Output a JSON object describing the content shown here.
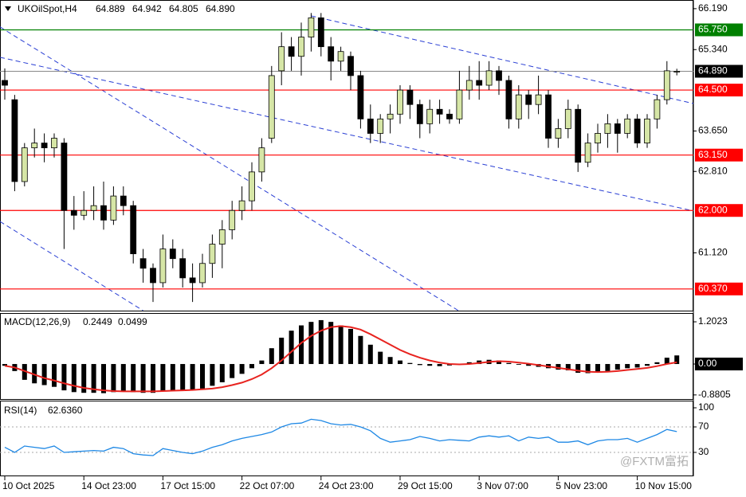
{
  "chart_data": [
    {
      "type": "candlestick",
      "symbol": "UKOilSpot,H4",
      "header_labels": [
        "64.889",
        "64.942",
        "64.805",
        "64.890"
      ],
      "categories": [
        "10 Oct 2025",
        null,
        null,
        null,
        null,
        null,
        null,
        null,
        "14 Oct 23:00",
        null,
        null,
        null,
        null,
        null,
        null,
        null,
        "17 Oct 15:00",
        null,
        null,
        null,
        null,
        null,
        null,
        null,
        "22 Oct 07:00",
        null,
        null,
        null,
        null,
        null,
        null,
        null,
        "24 Oct 23:00",
        null,
        null,
        null,
        null,
        null,
        null,
        null,
        "29 Oct 15:00",
        null,
        null,
        null,
        null,
        null,
        null,
        null,
        "3 Nov 07:00",
        null,
        null,
        null,
        null,
        null,
        null,
        null,
        "5 Nov 23:00",
        null,
        null,
        null,
        null,
        null,
        null,
        null,
        "10 Nov 15:00",
        null,
        null,
        null,
        null
      ],
      "open": [
        64.7,
        64.3,
        62.6,
        63.3,
        63.4,
        63.3,
        63.4,
        62.0,
        61.9,
        62.0,
        62.1,
        61.8,
        62.3,
        62.1,
        61.0,
        60.8,
        60.5,
        61.2,
        61.0,
        60.6,
        60.5,
        60.9,
        61.3,
        61.6,
        62.0,
        62.2,
        62.8,
        63.5,
        64.9,
        65.4,
        65.2,
        65.6,
        66.0,
        65.4,
        65.1,
        65.2,
        64.8,
        63.9,
        63.6,
        63.9,
        64.0,
        64.5,
        64.2,
        63.8,
        64.1,
        64.0,
        63.9,
        64.5,
        64.7,
        64.6,
        64.9,
        64.7,
        63.9,
        64.4,
        64.2,
        64.4,
        63.5,
        63.7,
        64.1,
        63.0,
        63.4,
        63.6,
        63.8,
        63.6,
        63.9,
        63.4,
        63.9,
        64.3,
        64.889
      ],
      "high": [
        64.95,
        64.4,
        63.4,
        63.7,
        63.6,
        63.6,
        63.5,
        62.3,
        62.4,
        62.5,
        62.6,
        62.5,
        62.5,
        62.2,
        61.2,
        60.9,
        61.5,
        61.4,
        61.2,
        60.9,
        61.1,
        61.5,
        61.8,
        62.2,
        62.5,
        63.0,
        63.5,
        65.0,
        65.7,
        65.6,
        65.9,
        66.1,
        66.1,
        65.6,
        65.4,
        65.3,
        64.9,
        64.2,
        64.0,
        64.2,
        64.6,
        64.6,
        64.3,
        64.3,
        64.3,
        64.1,
        64.9,
        65.0,
        65.1,
        65.1,
        65.0,
        64.8,
        64.6,
        64.5,
        64.8,
        64.5,
        63.9,
        64.3,
        64.2,
        63.6,
        63.8,
        64.0,
        63.9,
        64.0,
        64.0,
        64.0,
        64.4,
        65.1,
        64.942
      ],
      "low": [
        64.3,
        62.4,
        62.5,
        63.1,
        63.0,
        63.1,
        61.2,
        61.6,
        61.8,
        61.8,
        61.6,
        61.7,
        61.9,
        60.9,
        60.5,
        60.1,
        60.4,
        60.8,
        60.4,
        60.1,
        60.4,
        60.6,
        60.8,
        61.4,
        61.8,
        62.0,
        62.6,
        63.4,
        64.6,
        64.9,
        64.8,
        65.3,
        65.2,
        64.7,
        64.9,
        64.5,
        63.7,
        63.4,
        63.4,
        63.6,
        63.8,
        63.9,
        63.5,
        63.6,
        63.8,
        63.8,
        63.8,
        64.3,
        64.3,
        64.5,
        64.4,
        63.7,
        63.7,
        63.9,
        64.0,
        63.3,
        63.3,
        63.5,
        62.8,
        62.9,
        63.2,
        63.3,
        63.2,
        63.5,
        63.3,
        63.3,
        63.7,
        64.2,
        64.805
      ],
      "close": [
        64.6,
        62.6,
        63.3,
        63.4,
        63.3,
        63.5,
        62.0,
        61.9,
        62.0,
        62.1,
        61.8,
        62.3,
        62.1,
        61.1,
        60.8,
        60.5,
        61.2,
        61.0,
        60.6,
        60.5,
        60.9,
        61.3,
        61.6,
        62.0,
        62.2,
        62.8,
        63.3,
        64.8,
        65.4,
        65.2,
        65.6,
        66.0,
        65.4,
        65.1,
        65.3,
        64.8,
        63.9,
        63.6,
        63.9,
        64.0,
        64.5,
        64.2,
        63.8,
        64.1,
        64.0,
        63.9,
        64.5,
        64.7,
        64.6,
        64.9,
        64.7,
        63.9,
        64.4,
        64.2,
        64.4,
        63.5,
        63.7,
        64.1,
        63.0,
        63.4,
        63.6,
        63.8,
        63.6,
        63.9,
        63.4,
        63.9,
        64.3,
        64.9,
        64.89
      ],
      "up_color": "#d6e6a6",
      "down_color": "#000000",
      "ylim": [
        59.92,
        66.37
      ],
      "yticks": [
        {
          "value": 66.19,
          "label": "66.190"
        },
        {
          "value": 65.34,
          "label": "65.340"
        },
        {
          "value": 63.65,
          "label": "63.650"
        },
        {
          "value": 62.81,
          "label": "62.810"
        },
        {
          "value": 61.12,
          "label": "61.120"
        }
      ],
      "levels": [
        {
          "value": 65.75,
          "label": "65.750",
          "color": "#008000"
        },
        {
          "value": 64.5,
          "label": "64.500",
          "color": "#ff0000"
        },
        {
          "value": 63.15,
          "label": "63.150",
          "color": "#ff0000"
        },
        {
          "value": 62.0,
          "label": "62.000",
          "color": "#ff0000"
        },
        {
          "value": 60.37,
          "label": "60.370",
          "color": "#ff0000"
        }
      ],
      "current_price": {
        "value": 64.89,
        "label": "64.890"
      },
      "trendline_color": "#2a3fd4",
      "trendlines": [
        {
          "x": [
            -0.48,
            45.9
          ],
          "y": [
            65.81,
            59.92
          ]
        },
        {
          "x": [
            -0.48,
            69.7
          ],
          "y": [
            65.18,
            61.99
          ]
        },
        {
          "x": [
            31,
            69.7
          ],
          "y": [
            66.04,
            64.22
          ]
        },
        {
          "x": [
            -0.48,
            14.0
          ],
          "y": [
            61.77,
            59.92
          ]
        }
      ]
    },
    {
      "type": "macd",
      "name": "MACD(12,26,9)",
      "histogram": [
        -0.05,
        -0.2,
        -0.45,
        -0.55,
        -0.6,
        -0.65,
        -0.75,
        -0.8,
        -0.82,
        -0.82,
        -0.83,
        -0.8,
        -0.78,
        -0.8,
        -0.82,
        -0.82,
        -0.78,
        -0.76,
        -0.76,
        -0.74,
        -0.7,
        -0.62,
        -0.52,
        -0.4,
        -0.28,
        -0.12,
        0.1,
        0.45,
        0.75,
        0.95,
        1.1,
        1.2,
        1.25,
        1.2,
        1.1,
        1.0,
        0.8,
        0.55,
        0.35,
        0.2,
        0.1,
        0.03,
        -0.03,
        -0.05,
        -0.06,
        -0.04,
        0.0,
        0.05,
        0.1,
        0.12,
        0.1,
        0.03,
        -0.02,
        -0.05,
        -0.08,
        -0.12,
        -0.16,
        -0.18,
        -0.25,
        -0.26,
        -0.24,
        -0.2,
        -0.16,
        -0.12,
        -0.1,
        -0.05,
        0.05,
        0.18,
        0.2449
      ],
      "signal": [
        -0.05,
        -0.1,
        -0.2,
        -0.3,
        -0.4,
        -0.47,
        -0.55,
        -0.62,
        -0.68,
        -0.72,
        -0.75,
        -0.77,
        -0.78,
        -0.78,
        -0.78,
        -0.78,
        -0.77,
        -0.76,
        -0.75,
        -0.74,
        -0.72,
        -0.7,
        -0.66,
        -0.6,
        -0.53,
        -0.43,
        -0.3,
        -0.12,
        0.1,
        0.35,
        0.6,
        0.8,
        0.95,
        1.05,
        1.08,
        1.05,
        0.98,
        0.85,
        0.7,
        0.55,
        0.4,
        0.28,
        0.18,
        0.1,
        0.04,
        0.0,
        -0.01,
        0.0,
        0.03,
        0.06,
        0.08,
        0.07,
        0.04,
        0.01,
        -0.03,
        -0.07,
        -0.11,
        -0.15,
        -0.19,
        -0.22,
        -0.23,
        -0.22,
        -0.2,
        -0.17,
        -0.14,
        -0.11,
        -0.06,
        0.0,
        0.0499
      ],
      "histogram_color": "#000000",
      "signal_color": "#e8231f",
      "ylim": [
        -1.02,
        1.43
      ],
      "yticks": [
        1.2023,
        {
          "value": 0,
          "label": "0.00"
        },
        -0.8805
      ]
    },
    {
      "type": "rsi",
      "name": "RSI(14)",
      "value_label": "62.6360",
      "values": [
        38,
        30,
        40,
        38,
        36,
        40,
        30,
        31,
        32,
        33,
        32,
        38,
        36,
        28,
        26,
        25,
        36,
        33,
        30,
        28,
        32,
        38,
        42,
        48,
        52,
        55,
        58,
        62,
        70,
        75,
        76,
        82,
        80,
        75,
        73,
        74,
        70,
        64,
        52,
        46,
        48,
        50,
        55,
        52,
        48,
        50,
        49,
        48,
        54,
        56,
        54,
        56,
        48,
        54,
        52,
        54,
        46,
        46,
        48,
        42,
        48,
        50,
        50,
        52,
        46,
        52,
        58,
        66,
        62.636
      ],
      "color": "#1e88e5",
      "levels": [
        70,
        30
      ],
      "ylim": [
        -7.5,
        110
      ],
      "yticks": [
        100,
        70,
        30
      ]
    }
  ],
  "watermark": "@FXTM富拓"
}
